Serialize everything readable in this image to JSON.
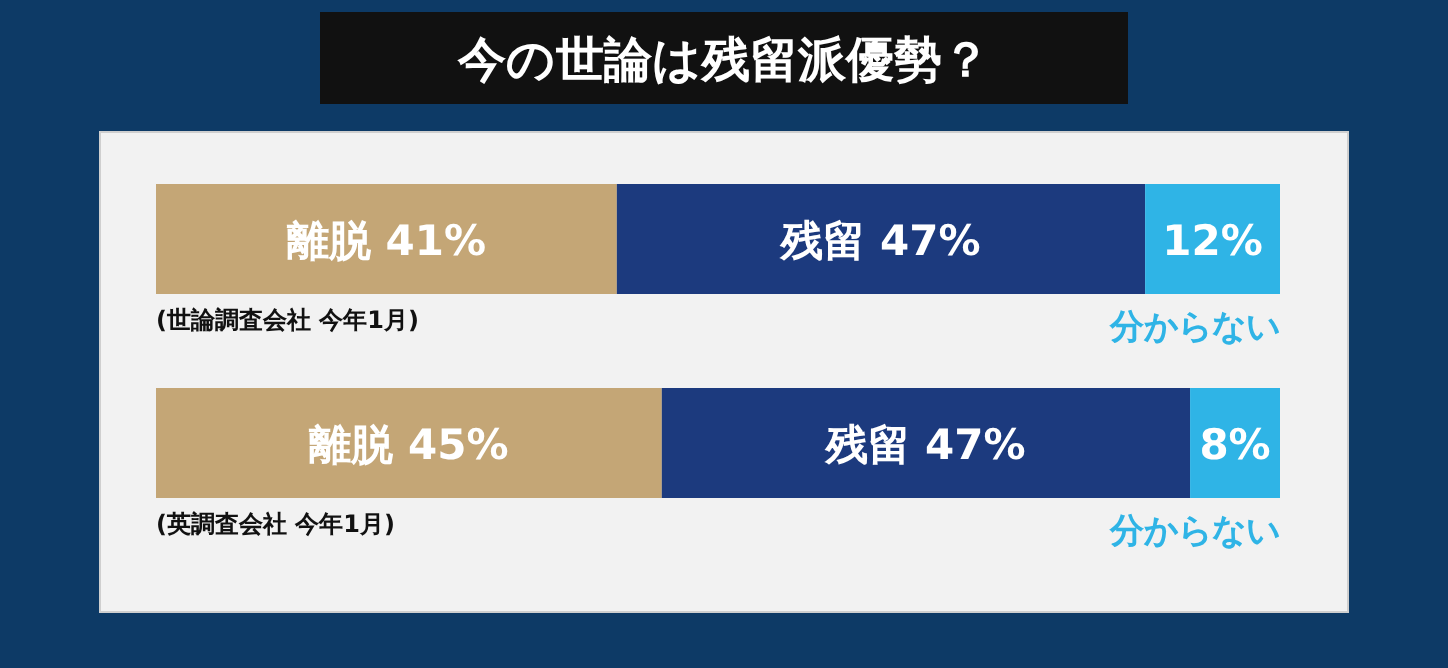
{
  "chart_data": {
    "type": "bar",
    "title": "今の世論は残留派優勢？",
    "orientation": "horizontal",
    "stacked": true,
    "xlim": [
      0,
      100
    ],
    "categories": [
      "(世論調査会社 今年1月)",
      "(英調査会社 今年1月)"
    ],
    "series": [
      {
        "name": "離脱",
        "color": "#c4a676",
        "values": [
          41,
          45
        ],
        "value_labels": [
          "41%",
          "45%"
        ]
      },
      {
        "name": "残留",
        "color": "#1c3a7e",
        "values": [
          47,
          47
        ],
        "value_labels": [
          "47%",
          "47%"
        ]
      },
      {
        "name": "分からない",
        "color": "#2fb4e6",
        "values": [
          12,
          8
        ],
        "value_labels": [
          "12%",
          "8%"
        ]
      }
    ]
  }
}
